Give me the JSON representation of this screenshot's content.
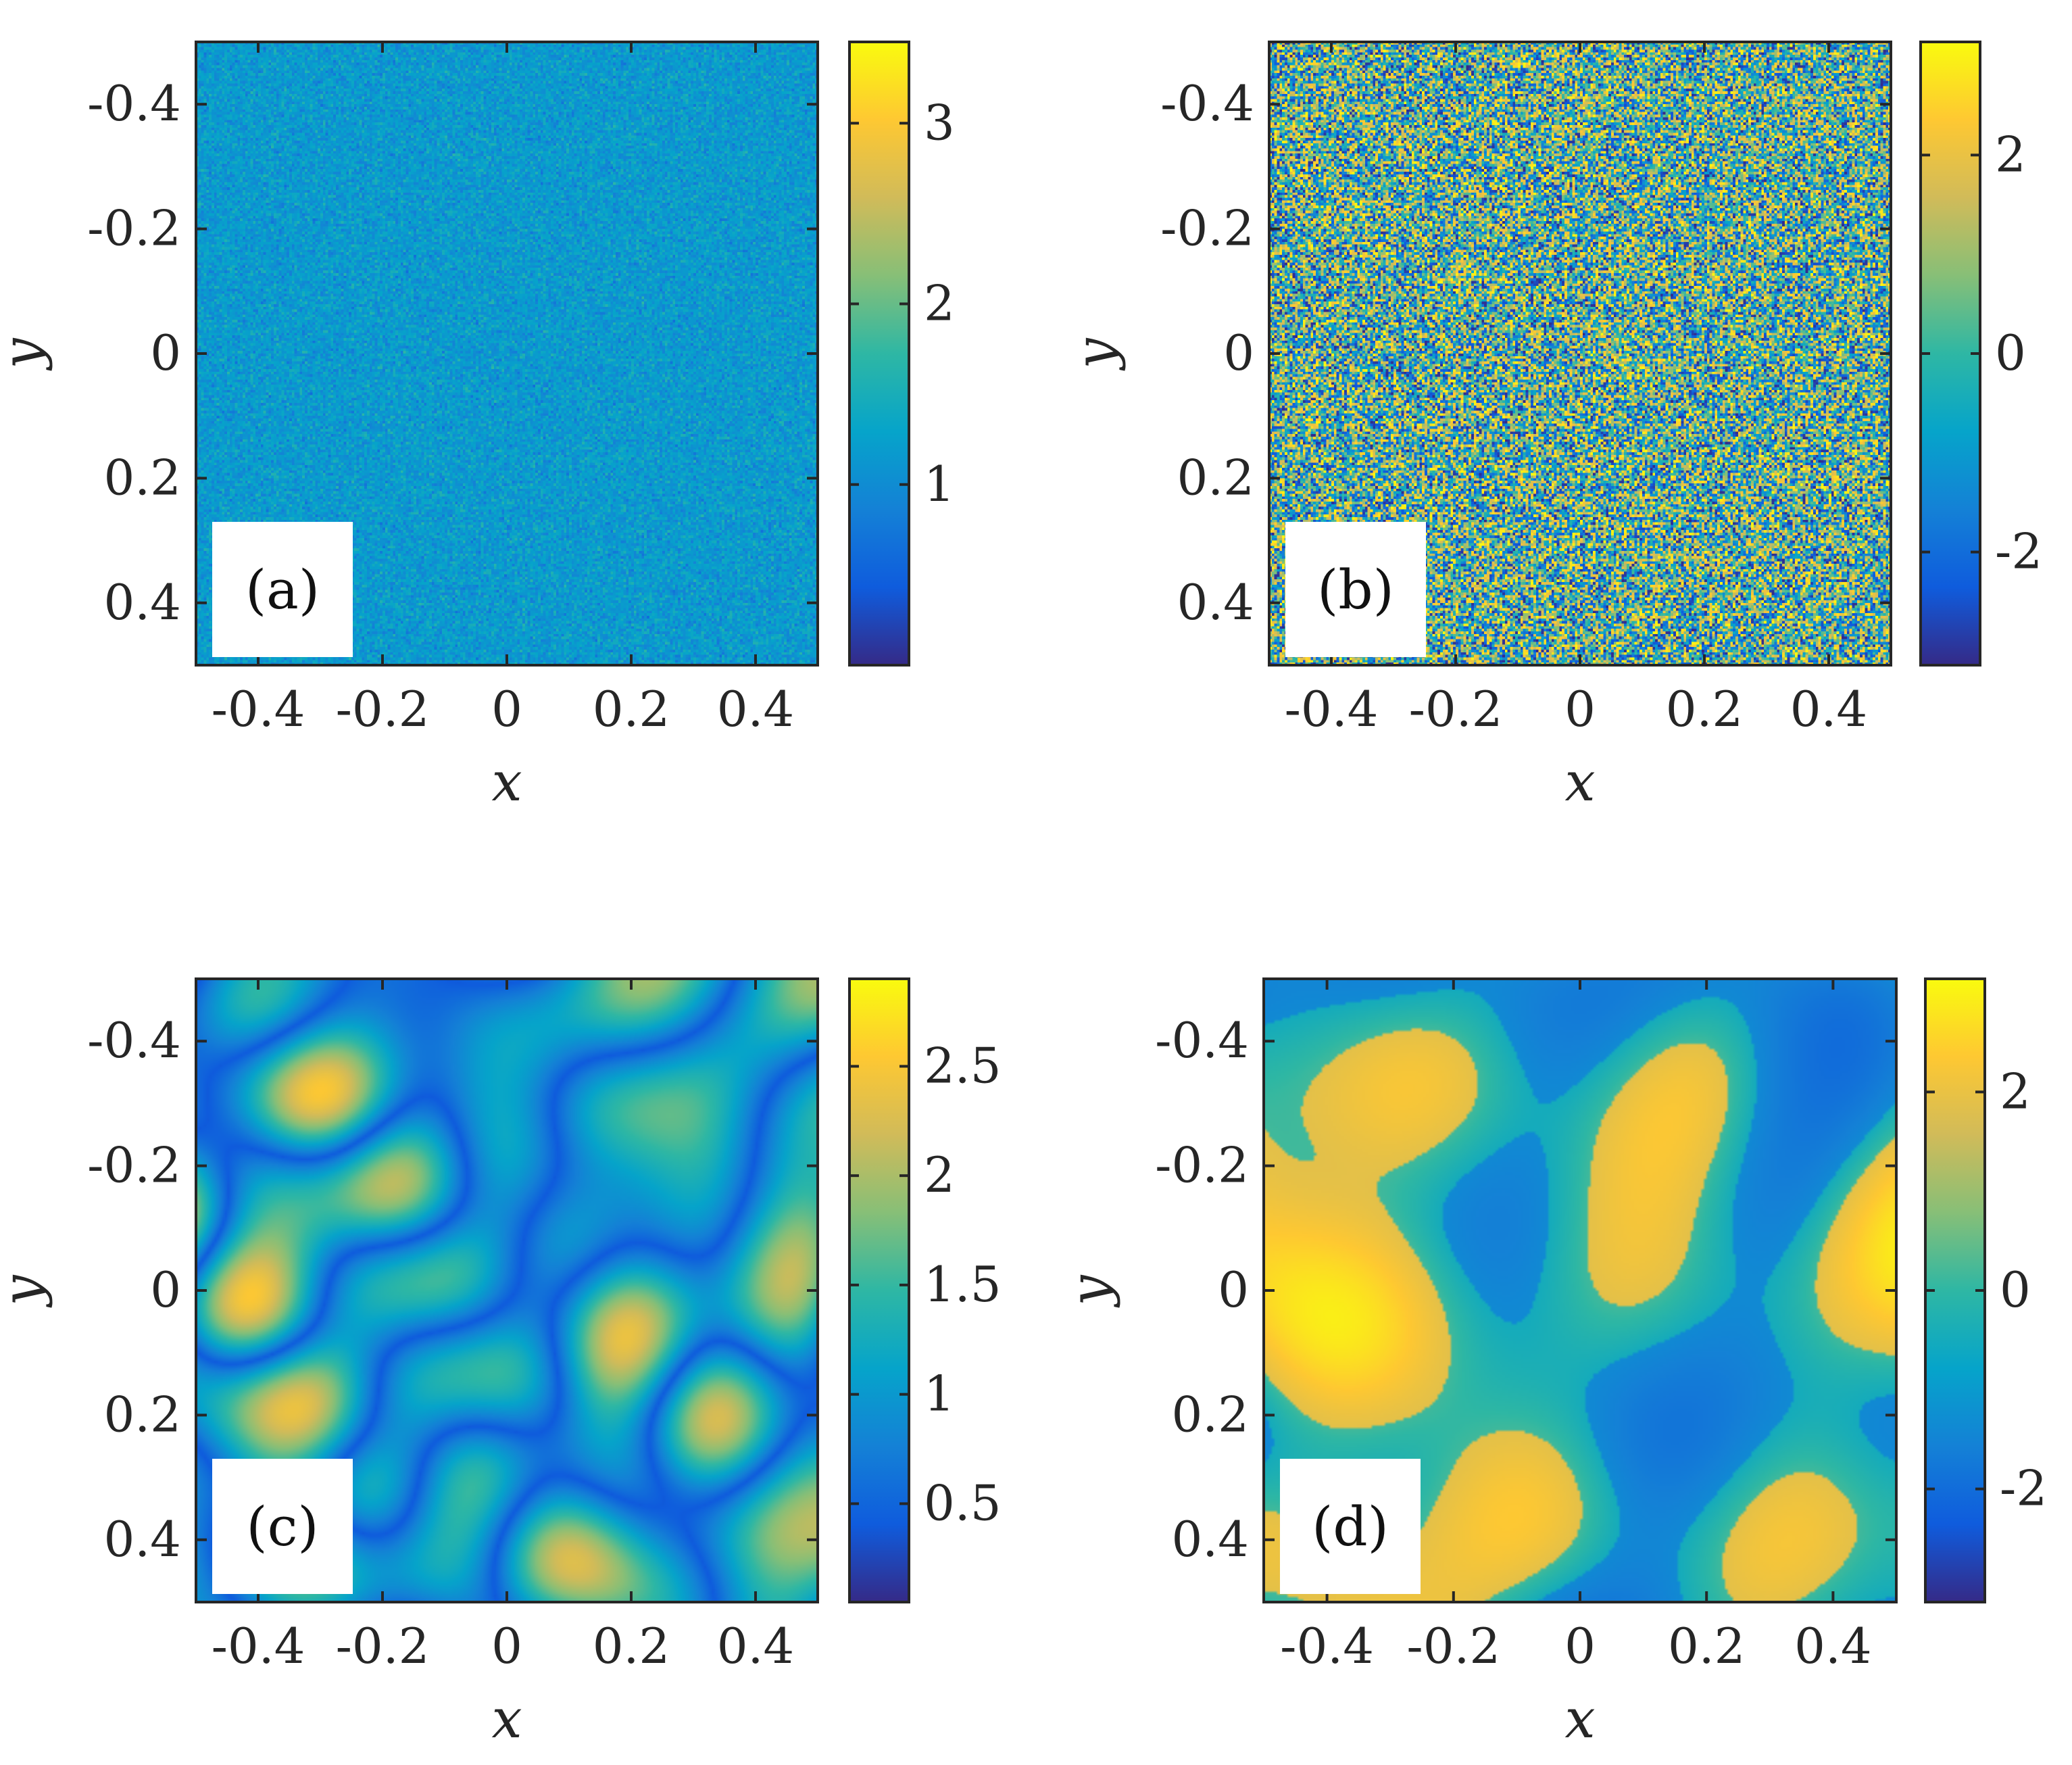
{
  "colormap": {
    "name": "parula",
    "stops": [
      "#352a87",
      "#0f5cdd",
      "#1481d6",
      "#06a4ca",
      "#2eb7a4",
      "#87bf77",
      "#d1bb59",
      "#fec832",
      "#f9fb0e"
    ]
  },
  "chart_data": [
    {
      "type": "heatmap",
      "panel_label": "(a)",
      "field": "amplitude",
      "texture": "noise",
      "xlabel": "x",
      "ylabel": "y",
      "xlim": [
        -0.5,
        0.5
      ],
      "ylim": [
        -0.5,
        0.5
      ],
      "y_direction": "reversed",
      "xticks": [
        -0.4,
        -0.2,
        0,
        0.2,
        0.4
      ],
      "xtick_labels": [
        "-0.4",
        "-0.2",
        "0",
        "0.2",
        "0.4"
      ],
      "yticks": [
        -0.4,
        -0.2,
        0,
        0.2,
        0.4
      ],
      "ytick_labels": [
        "-0.4",
        "-0.2",
        "0",
        "0.2",
        "0.4"
      ],
      "colorbar": {
        "clim": [
          0,
          3.45
        ],
        "ticks": [
          1,
          2,
          3
        ],
        "tick_labels": [
          "1",
          "2",
          "3"
        ]
      }
    },
    {
      "type": "heatmap",
      "panel_label": "(b)",
      "field": "phase",
      "texture": "noise",
      "xlabel": "x",
      "ylabel": "y",
      "xlim": [
        -0.5,
        0.5
      ],
      "ylim": [
        -0.5,
        0.5
      ],
      "y_direction": "reversed",
      "xticks": [
        -0.4,
        -0.2,
        0,
        0.2,
        0.4
      ],
      "xtick_labels": [
        "-0.4",
        "-0.2",
        "0",
        "0.2",
        "0.4"
      ],
      "yticks": [
        -0.4,
        -0.2,
        0,
        0.2,
        0.4
      ],
      "ytick_labels": [
        "-0.4",
        "-0.2",
        "0",
        "0.2",
        "0.4"
      ],
      "colorbar": {
        "clim": [
          -3.14,
          3.14
        ],
        "ticks": [
          -2,
          0,
          2
        ],
        "tick_labels": [
          "-2",
          "0",
          "2"
        ]
      }
    },
    {
      "type": "heatmap",
      "panel_label": "(c)",
      "field": "amplitude",
      "texture": "smooth",
      "xlabel": "x",
      "ylabel": "y",
      "xlim": [
        -0.5,
        0.5
      ],
      "ylim": [
        -0.5,
        0.5
      ],
      "y_direction": "reversed",
      "xticks": [
        -0.4,
        -0.2,
        0,
        0.2,
        0.4
      ],
      "xtick_labels": [
        "-0.4",
        "-0.2",
        "0",
        "0.2",
        "0.4"
      ],
      "yticks": [
        -0.4,
        -0.2,
        0,
        0.2,
        0.4
      ],
      "ytick_labels": [
        "-0.4",
        "-0.2",
        "0",
        "0.2",
        "0.4"
      ],
      "colorbar": {
        "clim": [
          0.05,
          2.9
        ],
        "ticks": [
          0.5,
          1,
          1.5,
          2,
          2.5
        ],
        "tick_labels": [
          "0.5",
          "1",
          "1.5",
          "2",
          "2.5"
        ]
      }
    },
    {
      "type": "heatmap",
      "panel_label": "(d)",
      "field": "phase",
      "texture": "blobs",
      "xlabel": "x",
      "ylabel": "y",
      "xlim": [
        -0.5,
        0.5
      ],
      "ylim": [
        -0.5,
        0.5
      ],
      "y_direction": "reversed",
      "xticks": [
        -0.4,
        -0.2,
        0,
        0.2,
        0.4
      ],
      "xtick_labels": [
        "-0.4",
        "-0.2",
        "0",
        "0.2",
        "0.4"
      ],
      "yticks": [
        -0.4,
        -0.2,
        0,
        0.2,
        0.4
      ],
      "ytick_labels": [
        "-0.4",
        "-0.2",
        "0",
        "0.2",
        "0.4"
      ],
      "colorbar": {
        "clim": [
          -3.14,
          3.14
        ],
        "ticks": [
          -2,
          0,
          2
        ],
        "tick_labels": [
          "-2",
          "0",
          "2"
        ]
      }
    }
  ]
}
